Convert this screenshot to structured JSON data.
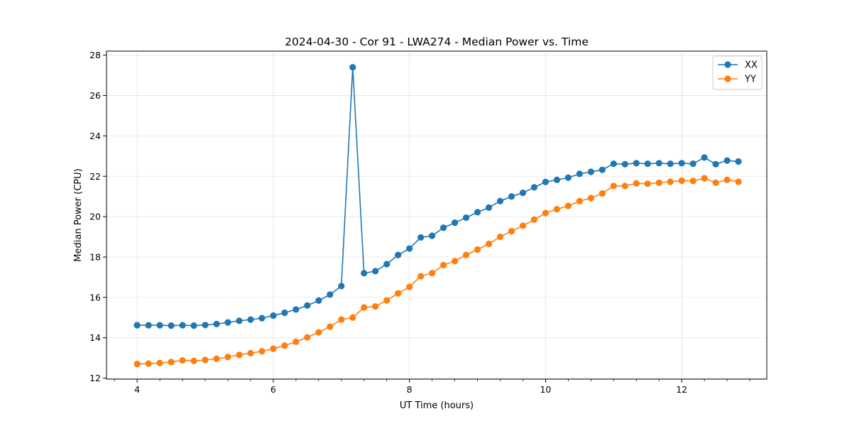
{
  "chart_data": {
    "type": "line",
    "title": "2024-04-30 - Cor 91 - LWA274 - Median Power vs. Time",
    "xlabel": "UT Time (hours)",
    "ylabel": "Median Power (CPU)",
    "xlim": [
      3.55,
      13.25
    ],
    "ylim": [
      11.95,
      28.2
    ],
    "xticks": [
      4,
      6,
      8,
      10,
      12
    ],
    "xtick_labels": [
      "4",
      "6",
      "8",
      "10",
      "12"
    ],
    "xminor_step": 0.333333,
    "yticks": [
      12,
      14,
      16,
      18,
      20,
      22,
      24,
      26,
      28
    ],
    "ytick_labels": [
      "12",
      "14",
      "16",
      "18",
      "20",
      "22",
      "24",
      "26",
      "28"
    ],
    "grid": true,
    "legend_position": "top-right",
    "x": [
      4.0,
      4.167,
      4.333,
      4.5,
      4.667,
      4.833,
      5.0,
      5.167,
      5.333,
      5.5,
      5.667,
      5.833,
      6.0,
      6.167,
      6.333,
      6.5,
      6.667,
      6.833,
      7.0,
      7.167,
      7.333,
      7.5,
      7.667,
      7.833,
      8.0,
      8.167,
      8.333,
      8.5,
      8.667,
      8.833,
      9.0,
      9.167,
      9.333,
      9.5,
      9.667,
      9.833,
      10.0,
      10.167,
      10.333,
      10.5,
      10.667,
      10.833,
      11.0,
      11.167,
      11.333,
      11.5,
      11.667,
      11.833,
      12.0,
      12.167,
      12.333,
      12.5,
      12.667,
      12.833
    ],
    "series": [
      {
        "name": "XX",
        "color": "#1f77b4",
        "values": [
          14.62,
          14.62,
          14.62,
          14.6,
          14.62,
          14.6,
          14.63,
          14.68,
          14.76,
          14.84,
          14.9,
          14.97,
          15.1,
          15.24,
          15.4,
          15.6,
          15.84,
          16.14,
          16.56,
          27.4,
          17.2,
          17.3,
          17.65,
          18.1,
          18.42,
          18.97,
          19.05,
          19.45,
          19.7,
          19.95,
          20.22,
          20.45,
          20.77,
          21.0,
          21.18,
          21.45,
          21.72,
          21.82,
          21.93,
          22.12,
          22.22,
          22.32,
          22.62,
          22.6,
          22.65,
          22.62,
          22.65,
          22.62,
          22.65,
          22.62,
          22.93,
          22.6,
          22.78,
          22.73
        ]
      },
      {
        "name": "YY",
        "color": "#ff7f0e",
        "values": [
          12.7,
          12.72,
          12.75,
          12.8,
          12.88,
          12.85,
          12.9,
          12.96,
          13.05,
          13.15,
          13.24,
          13.33,
          13.46,
          13.61,
          13.8,
          14.02,
          14.27,
          14.55,
          14.9,
          15.0,
          15.5,
          15.55,
          15.85,
          16.2,
          16.52,
          17.05,
          17.2,
          17.6,
          17.8,
          18.1,
          18.37,
          18.65,
          19.0,
          19.28,
          19.55,
          19.85,
          20.18,
          20.37,
          20.53,
          20.77,
          20.92,
          21.15,
          21.52,
          21.52,
          21.65,
          21.63,
          21.68,
          21.73,
          21.78,
          21.77,
          21.9,
          21.68,
          21.82,
          21.73
        ]
      }
    ]
  }
}
